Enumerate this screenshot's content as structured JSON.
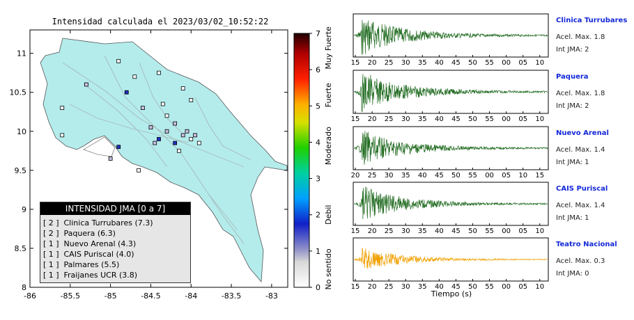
{
  "map": {
    "title": "Intensidad calculada el 2023/03/02_10:52:22",
    "lon_ticks": [
      "-86",
      "-85.5",
      "-85",
      "-84.5",
      "-84",
      "-83.5",
      "-83"
    ],
    "lat_ticks": [
      "8",
      "8.5",
      "9",
      "9.5",
      "10",
      "10.5",
      "11"
    ],
    "lon_range": [
      -86,
      -82.8
    ],
    "lat_range": [
      8,
      11.3
    ]
  },
  "colorbar": {
    "ticks": [
      "0",
      "1",
      "2",
      "3",
      "4",
      "5",
      "6",
      "7"
    ],
    "labels": [
      "No sentido",
      "Debil",
      "Moderado",
      "Fuerte",
      "Muy Fuerte"
    ]
  },
  "legend": {
    "header": "INTENSIDAD JMA [0 a 7]",
    "rows": [
      {
        "bracket": "[ 2 ]",
        "text": "Clinica Turrubares (7.3)"
      },
      {
        "bracket": "[ 2 ]",
        "text": "Paquera (6.3)"
      },
      {
        "bracket": "[ 1 ]",
        "text": "Nuevo Arenal (4.3)"
      },
      {
        "bracket": "[ 1 ]",
        "text": "CAIS Puriscal (4.0)"
      },
      {
        "bracket": "[ 1 ]",
        "text": "Palmares (5.5)"
      },
      {
        "bracket": "[ 1 ]",
        "text": "Fraijanes UCR (3.8)"
      }
    ]
  },
  "stations": [
    {
      "lon": -85.3,
      "lat": 10.6,
      "intensity": 1
    },
    {
      "lon": -84.9,
      "lat": 10.9,
      "intensity": 0
    },
    {
      "lon": -84.8,
      "lat": 10.5,
      "intensity": 2
    },
    {
      "lon": -84.6,
      "lat": 10.3,
      "intensity": 1
    },
    {
      "lon": -84.35,
      "lat": 10.35,
      "intensity": 0
    },
    {
      "lon": -84.2,
      "lat": 10.1,
      "intensity": 1
    },
    {
      "lon": -84.3,
      "lat": 10.0,
      "intensity": 1
    },
    {
      "lon": -84.1,
      "lat": 9.95,
      "intensity": 1
    },
    {
      "lon": -84.0,
      "lat": 9.9,
      "intensity": 0
    },
    {
      "lon": -84.2,
      "lat": 9.85,
      "intensity": 2
    },
    {
      "lon": -84.4,
      "lat": 9.9,
      "intensity": 2
    },
    {
      "lon": -84.05,
      "lat": 10.0,
      "intensity": 1
    },
    {
      "lon": -83.95,
      "lat": 9.95,
      "intensity": 1
    },
    {
      "lon": -83.9,
      "lat": 9.85,
      "intensity": 0
    },
    {
      "lon": -84.5,
      "lat": 10.05,
      "intensity": 1
    },
    {
      "lon": -84.45,
      "lat": 9.85,
      "intensity": 1
    },
    {
      "lon": -84.3,
      "lat": 10.2,
      "intensity": 0
    },
    {
      "lon": -84.15,
      "lat": 9.75,
      "intensity": 0
    },
    {
      "lon": -85.0,
      "lat": 9.65,
      "intensity": 1
    },
    {
      "lon": -84.9,
      "lat": 9.8,
      "intensity": 2
    },
    {
      "lon": -85.6,
      "lat": 10.3,
      "intensity": 0
    },
    {
      "lon": -85.6,
      "lat": 9.95,
      "intensity": 0
    },
    {
      "lon": -84.65,
      "lat": 9.5,
      "intensity": 0
    },
    {
      "lon": -84.1,
      "lat": 10.55,
      "intensity": 0
    },
    {
      "lon": -84.4,
      "lat": 10.75,
      "intensity": 0
    },
    {
      "lon": -84.0,
      "lat": 10.4,
      "intensity": 0
    },
    {
      "lon": -84.7,
      "lat": 10.7,
      "intensity": 0
    }
  ],
  "waveforms": {
    "xlabel": "Tiempo (s)",
    "panels": [
      {
        "name": "Clinica Turrubares",
        "acel": "Acel. Max. 1.8",
        "jma": "Int JMA: 2",
        "color": "#1f6a1f",
        "ticks": [
          "15",
          "20",
          "25",
          "30",
          "35",
          "40",
          "45",
          "50",
          "55",
          "00",
          "05",
          "10"
        ],
        "amp": 1.0
      },
      {
        "name": "Paquera",
        "acel": "Acel. Max. 1.8",
        "jma": "Int JMA: 2",
        "color": "#1f6a1f",
        "ticks": [
          "15",
          "20",
          "25",
          "30",
          "35",
          "40",
          "45",
          "50",
          "55",
          "00",
          "05",
          "10"
        ],
        "amp": 1.0
      },
      {
        "name": "Nuevo Arenal",
        "acel": "Acel. Max. 1.4",
        "jma": "Int JMA: 1",
        "color": "#1f6a1f",
        "ticks": [
          "20",
          "25",
          "30",
          "35",
          "40",
          "45",
          "50",
          "55",
          "00",
          "05",
          "10",
          "15"
        ],
        "amp": 0.9
      },
      {
        "name": "CAIS Puriscal",
        "acel": "Acel. Max. 1.4",
        "jma": "Int JMA: 1",
        "color": "#1f6a1f",
        "ticks": [
          "15",
          "20",
          "25",
          "30",
          "35",
          "40",
          "45",
          "50",
          "55",
          "00",
          "05",
          "10"
        ],
        "amp": 0.9
      },
      {
        "name": "Teatro Nacional",
        "acel": "Acel. Max. 0.3",
        "jma": "Int JMA: 0",
        "color": "#f0a000",
        "ticks": [
          "15",
          "20",
          "25",
          "30",
          "35",
          "40",
          "45",
          "50",
          "55",
          "00",
          "05",
          "10"
        ],
        "amp": 0.6
      }
    ]
  }
}
